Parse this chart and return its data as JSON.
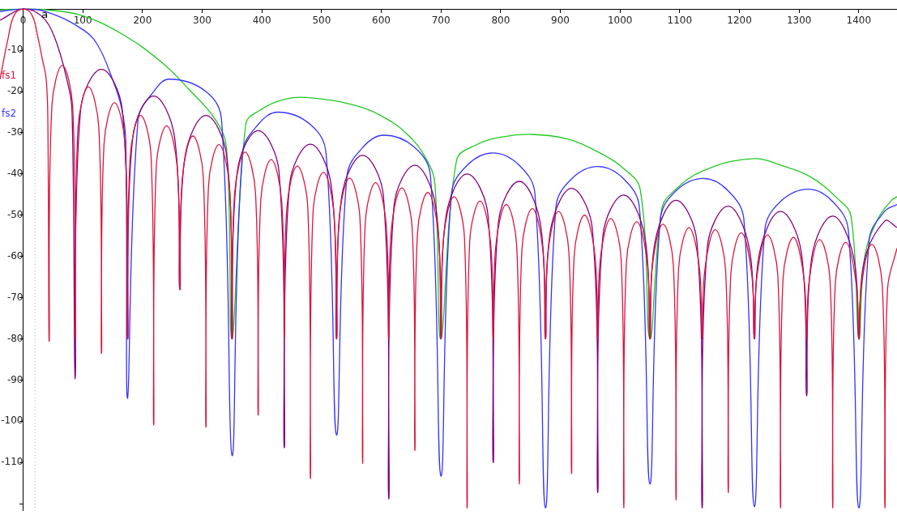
{
  "chart_data": {
    "type": "line",
    "xlim": [
      -38.7,
      1464
    ],
    "ylim": [
      -121.7,
      0.2
    ],
    "xticks": [
      0,
      100,
      200,
      300,
      400,
      500,
      600,
      700,
      800,
      900,
      1000,
      1100,
      1200,
      1300,
      1400
    ],
    "yticks": [
      -10,
      -20,
      -30,
      -40,
      -50,
      -60,
      -70,
      -80,
      -90,
      -100,
      -110,
      {
        "value": -120,
        "label": null
      }
    ],
    "grid": false,
    "legend": false,
    "marker": "none",
    "line_style": "solid",
    "ref_lines": [
      {
        "axis": "x",
        "value": 20,
        "label": "a",
        "line_style": "dotted",
        "color": "#aaaaaa"
      }
    ],
    "series": [
      {
        "color": "#20c820",
        "x": [
          -38.7,
          0,
          40,
          97,
          165,
          233,
          278,
          323,
          341,
          350,
          373,
          396,
          441,
          487,
          555,
          599,
          644,
          677,
          690,
          700,
          726,
          758,
          803,
          853,
          912,
          957,
          1003,
          1034,
          1050,
          1070,
          1092,
          1138,
          1220,
          1274,
          1319,
          1364,
          1387,
          1400,
          1410,
          1432,
          1455,
          1464
        ],
        "values": [
          -0.2,
          0,
          -0.2,
          -1.5,
          -6,
          -13,
          -19.5,
          -27,
          -34,
          -80,
          -28,
          -24.6,
          -21.8,
          -21.6,
          -23.3,
          -25.8,
          -30.4,
          -36.8,
          -42.6,
          -80,
          -36.8,
          -33,
          -31,
          -30.4,
          -31.5,
          -34.2,
          -38.3,
          -43.9,
          -80,
          -48.4,
          -43.9,
          -39.3,
          -36.3,
          -38.1,
          -40.7,
          -45.9,
          -50.3,
          -80,
          -60,
          -50.9,
          -46.4,
          -45.5
        ]
      },
      {
        "name": "fs2",
        "color": "#3333ff",
        "x": [
          -38.7,
          0,
          40,
          97,
          124,
          151,
          165,
          172,
          175,
          192.5,
          218.75,
          245,
          306.25,
          332.5,
          350,
          367.5,
          393.75,
          427,
          481.25,
          507.5,
          525,
          542.5,
          568.75,
          605,
          656.25,
          682.5,
          700,
          717.5,
          743.75,
          787,
          831.25,
          857.5,
          875,
          892.5,
          918.75,
          963,
          1006.25,
          1032.5,
          1050,
          1067.5,
          1093.75,
          1140,
          1181.25,
          1207.5,
          1225,
          1242.5,
          1268.75,
          1316,
          1356.25,
          1382.5,
          1400,
          1417.5,
          1443.75,
          1464
        ],
        "values": [
          -0.6,
          0,
          -0.7,
          -4.7,
          -8.5,
          -17.5,
          -24,
          -32,
          -94.4,
          -27,
          -20,
          -17,
          -20,
          -27,
          -108.3,
          -35,
          -28,
          -25,
          -28,
          -35,
          -103.3,
          -40.6,
          -33.6,
          -30.6,
          -33.6,
          -40.6,
          -113.3,
          -44.9,
          -37.9,
          -34.9,
          -37.9,
          -44.9,
          -121,
          -48.2,
          -41.2,
          -38.2,
          -41.2,
          -48.2,
          -115.2,
          -51.1,
          -44.1,
          -41.1,
          -44.1,
          -51.1,
          -120.7,
          -53.7,
          -46.7,
          -43.7,
          -46.7,
          -53.7,
          -121,
          -56,
          -49,
          -47.4
        ]
      },
      {
        "color": "#800080",
        "x": [
          -38.7,
          0,
          30,
          52,
          74,
          82,
          87.5,
          96.25,
          131.25,
          166.25,
          175,
          183.75,
          218.75,
          253.75,
          262.5,
          271.25,
          306.25,
          341.25,
          350,
          358.75,
          393.75,
          428.75,
          437.5,
          446.25,
          481.25,
          516.25,
          525,
          533.75,
          568.75,
          603.75,
          612.5,
          621.25,
          656.25,
          691.25,
          700,
          708.75,
          743.75,
          778.75,
          787.5,
          796.25,
          831.25,
          866.25,
          875,
          883.75,
          918.75,
          953.75,
          962.5,
          971.25,
          1006.25,
          1041.25,
          1050,
          1058.75,
          1093.75,
          1128.75,
          1137.5,
          1146.25,
          1181.25,
          1216.25,
          1225,
          1233.75,
          1268.75,
          1303.75,
          1312.5,
          1321.25,
          1356.25,
          1391.25,
          1400,
          1408.75,
          1443.75,
          1464
        ],
        "values": [
          -2.7,
          0,
          -1.6,
          -6.6,
          -17.5,
          -25,
          -89.7,
          -24.6,
          -14.6,
          -24.6,
          -80,
          -31.1,
          -21.1,
          -31.1,
          -68,
          -35.8,
          -25.8,
          -35.8,
          -80,
          -39.5,
          -29.5,
          -39.5,
          -106.4,
          -42.8,
          -32.8,
          -42.8,
          -80,
          -45.5,
          -35.5,
          -45.5,
          -118.8,
          -47.9,
          -37.9,
          -47.9,
          -80,
          -50,
          -40,
          -50,
          -110,
          -51.8,
          -41.8,
          -51.8,
          -80,
          -53.5,
          -43.5,
          -53.5,
          -117.3,
          -55.1,
          -45.1,
          -55.1,
          -80,
          -56.4,
          -46.4,
          -56.4,
          -121,
          -57.8,
          -47.8,
          -57.8,
          -80,
          -59.1,
          -49.1,
          -59.1,
          -93.8,
          -60.2,
          -50.2,
          -60.2,
          -80,
          -61.4,
          -51.4,
          -53
        ]
      },
      {
        "name": "fs1",
        "color": "#dc143c",
        "x": [
          -38.7,
          -25,
          -15,
          0,
          15,
          25,
          32,
          38.7,
          41.5,
          43.75,
          48.1,
          65.6,
          83.1,
          87.5,
          91.9,
          109.4,
          126.9,
          131.25,
          135.6,
          153.1,
          170.6,
          175,
          179.4,
          196.9,
          214.4,
          218.75,
          223.1,
          240.6,
          258.1,
          262.5,
          266.9,
          284.4,
          301.9,
          306.25,
          310.6,
          328.1,
          345.6,
          350,
          354.4,
          371.9,
          389.4,
          393.75,
          398.1,
          415.6,
          433.1,
          437.5,
          441.9,
          459.4,
          476.9,
          481.25,
          485.6,
          503.1,
          520.6,
          525,
          529.4,
          546.9,
          564.4,
          568.75,
          573.1,
          590.6,
          608.1,
          612.5,
          616.9,
          634.4,
          651.9,
          656.25,
          660.6,
          678.1,
          695.6,
          700,
          704.4,
          721.9,
          739.4,
          743.75,
          748.1,
          765.6,
          783.1,
          787.5,
          791.9,
          809.4,
          826.9,
          831.25,
          835.6,
          853.1,
          870.6,
          875,
          879.4,
          896.9,
          914.4,
          918.75,
          923.1,
          940.6,
          958.1,
          962.5,
          966.9,
          984.4,
          1001.9,
          1006.25,
          1010.6,
          1028.1,
          1045.6,
          1050,
          1054.4,
          1071.9,
          1089.4,
          1093.75,
          1098.1,
          1115.6,
          1133.1,
          1137.5,
          1141.9,
          1159.4,
          1176.9,
          1181.25,
          1185.6,
          1203.1,
          1220.6,
          1225,
          1229.4,
          1246.9,
          1264.4,
          1268.75,
          1273.1,
          1290.6,
          1308.1,
          1312.5,
          1316.9,
          1334.4,
          1351.9,
          1356.25,
          1360.6,
          1378.1,
          1395.6,
          1400,
          1404.4,
          1421.9,
          1439.4,
          1443.75,
          1448.1,
          1464
        ],
        "values": [
          -17,
          -7,
          -1.5,
          0,
          -1.5,
          -7,
          -12,
          -17,
          -28,
          -80.6,
          -23.7,
          -13.7,
          -23.7,
          -80,
          -28.9,
          -18.9,
          -28.9,
          -83.5,
          -32.7,
          -22.7,
          -32.7,
          -80,
          -35.8,
          -25.8,
          -35.8,
          -100.9,
          -38.3,
          -28.3,
          -38.3,
          -68,
          -40.8,
          -30.8,
          -40.8,
          -101.4,
          -42.9,
          -32.9,
          -42.9,
          -80,
          -44.7,
          -34.7,
          -44.7,
          -98.5,
          -46.5,
          -36.5,
          -46.5,
          -80,
          -48.1,
          -38.1,
          -48.1,
          -113.9,
          -49.6,
          -39.6,
          -49.6,
          -80,
          -51,
          -41,
          -51,
          -110.2,
          -52.1,
          -42.1,
          -52.1,
          -80,
          -53.4,
          -43.4,
          -53.4,
          -107.1,
          -54.5,
          -44.5,
          -54.5,
          -80,
          -55.5,
          -45.5,
          -55.5,
          -121,
          -56.6,
          -46.6,
          -56.6,
          -80,
          -57.4,
          -47.4,
          -57.4,
          -115.2,
          -58.4,
          -48.4,
          -58.4,
          -80,
          -59.1,
          -49.1,
          -59.1,
          -112.7,
          -60,
          -50,
          -60,
          -80,
          -60.8,
          -50.8,
          -60.8,
          -121,
          -61.6,
          -51.6,
          -61.6,
          -80,
          -62.2,
          -52.2,
          -62.2,
          -119.1,
          -63,
          -53,
          -63,
          -80,
          -63.5,
          -53.5,
          -63.5,
          -117.3,
          -64.3,
          -54.3,
          -64.3,
          -80,
          -64.8,
          -54.8,
          -64.8,
          -121,
          -65.4,
          -55.4,
          -65.4,
          -80,
          -65.9,
          -55.9,
          -65.9,
          -121,
          -66.6,
          -56.6,
          -66.6,
          -80,
          -67.1,
          -57.1,
          -67.1,
          -121,
          -68,
          -58
        ]
      }
    ]
  }
}
